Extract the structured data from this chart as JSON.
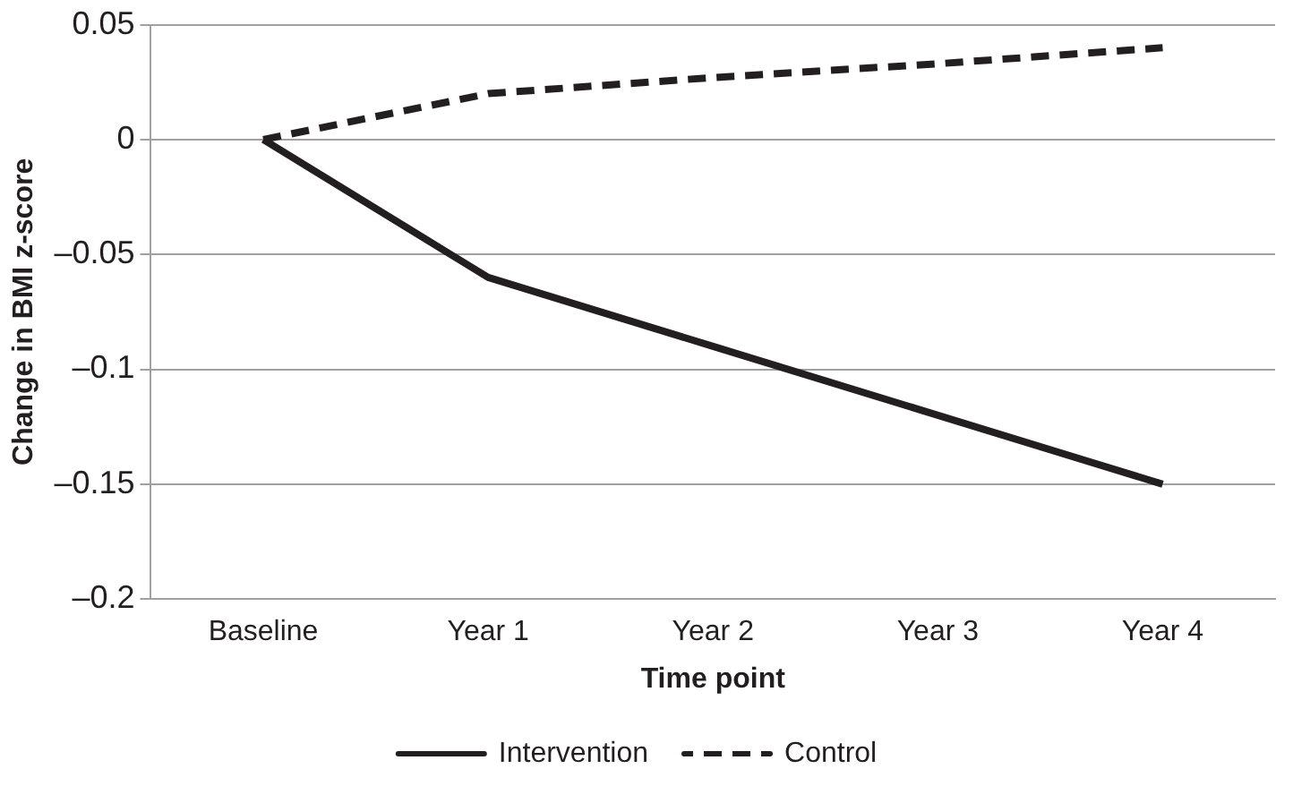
{
  "chart_data": {
    "type": "line",
    "xlabel": "Time point",
    "ylabel": "Change in BMI z-score",
    "categories": [
      "Baseline",
      "Year 1",
      "Year 2",
      "Year 3",
      "Year 4"
    ],
    "series": [
      {
        "name": "Intervention",
        "color": "#231f20",
        "line_style": "solid",
        "values": [
          0,
          -0.06,
          -0.09,
          -0.12,
          -0.15
        ]
      },
      {
        "name": "Control",
        "color": "#231f20",
        "line_style": "dashed",
        "values": [
          0,
          0.02,
          0.027,
          0.033,
          0.04
        ]
      }
    ],
    "ylim": [
      -0.2,
      0.05
    ],
    "yticks": [
      {
        "value": -0.2,
        "label": "–0.2"
      },
      {
        "value": -0.15,
        "label": "–0.15"
      },
      {
        "value": -0.1,
        "label": "–0.1"
      },
      {
        "value": -0.05,
        "label": "–0.05"
      },
      0,
      0.05
    ],
    "grid": "y",
    "legend": "bottom",
    "marker": "none"
  }
}
